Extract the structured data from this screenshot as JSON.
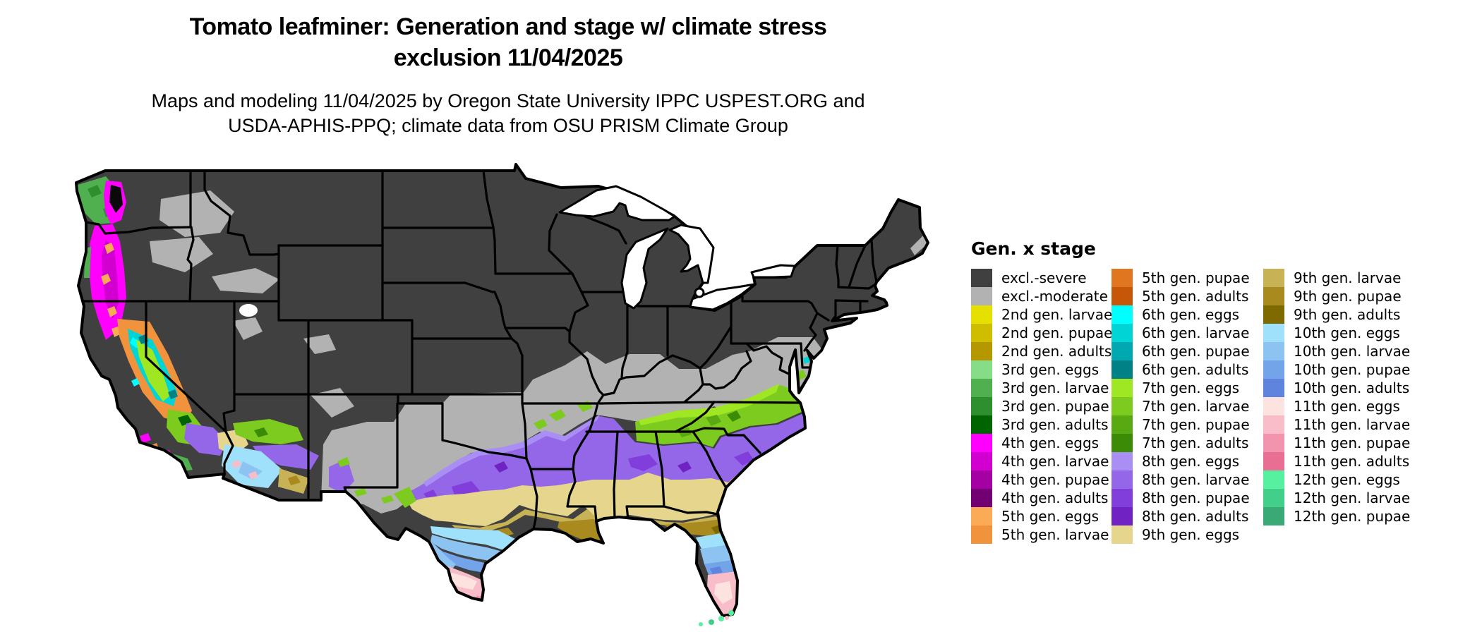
{
  "header": {
    "title1": "Tomato leafminer: Generation and stage w/ climate stress",
    "title2": "exclusion 11/04/2025",
    "subtitle1": "Maps and modeling 11/04/2025 by Oregon State University IPPC USPEST.ORG and",
    "subtitle2": "USDA-APHIS-PPQ; climate data from OSU PRISM Climate Group"
  },
  "legend": {
    "title": "Gen. x stage",
    "columns": [
      [
        {
          "label": "excl.-severe",
          "key": "excl_severe"
        },
        {
          "label": "excl.-moderate",
          "key": "excl_moderate"
        },
        {
          "label": "2nd gen. larvae",
          "key": "g2_larvae"
        },
        {
          "label": "2nd gen. pupae",
          "key": "g2_pupae"
        },
        {
          "label": "2nd gen. adults",
          "key": "g2_adults"
        },
        {
          "label": "3rd gen. eggs",
          "key": "g3_eggs"
        },
        {
          "label": "3rd gen. larvae",
          "key": "g3_larvae"
        },
        {
          "label": "3rd gen. pupae",
          "key": "g3_pupae"
        },
        {
          "label": "3rd gen. adults",
          "key": "g3_adults"
        },
        {
          "label": "4th gen. eggs",
          "key": "g4_eggs"
        },
        {
          "label": "4th gen. larvae",
          "key": "g4_larvae"
        },
        {
          "label": "4th gen. pupae",
          "key": "g4_pupae"
        },
        {
          "label": "4th gen. adults",
          "key": "g4_adults"
        },
        {
          "label": "5th gen. eggs",
          "key": "g5_eggs"
        },
        {
          "label": "5th gen. larvae",
          "key": "g5_larvae"
        }
      ],
      [
        {
          "label": "5th gen. pupae",
          "key": "g5_pupae"
        },
        {
          "label": "5th gen. adults",
          "key": "g5_adults"
        },
        {
          "label": "6th gen. eggs",
          "key": "g6_eggs"
        },
        {
          "label": "6th gen. larvae",
          "key": "g6_larvae"
        },
        {
          "label": "6th gen. pupae",
          "key": "g6_pupae"
        },
        {
          "label": "6th gen. adults",
          "key": "g6_adults"
        },
        {
          "label": "7th gen. eggs",
          "key": "g7_eggs"
        },
        {
          "label": "7th gen. larvae",
          "key": "g7_larvae"
        },
        {
          "label": "7th gen. pupae",
          "key": "g7_pupae"
        },
        {
          "label": "7th gen. adults",
          "key": "g7_adults"
        },
        {
          "label": "8th gen. eggs",
          "key": "g8_eggs"
        },
        {
          "label": "8th gen. larvae",
          "key": "g8_larvae"
        },
        {
          "label": "8th gen. pupae",
          "key": "g8_pupae"
        },
        {
          "label": "8th gen. adults",
          "key": "g8_adults"
        },
        {
          "label": "9th gen. eggs",
          "key": "g9_eggs"
        }
      ],
      [
        {
          "label": "9th gen. larvae",
          "key": "g9_larvae"
        },
        {
          "label": "9th gen. pupae",
          "key": "g9_pupae"
        },
        {
          "label": "9th gen. adults",
          "key": "g9_adults"
        },
        {
          "label": "10th gen. eggs",
          "key": "g10_eggs"
        },
        {
          "label": "10th gen. larvae",
          "key": "g10_larvae"
        },
        {
          "label": "10th gen. pupae",
          "key": "g10_pupae"
        },
        {
          "label": "10th gen. adults",
          "key": "g10_adults"
        },
        {
          "label": "11th gen. eggs",
          "key": "g11_eggs"
        },
        {
          "label": "11th gen. larvae",
          "key": "g11_larvae"
        },
        {
          "label": "11th gen. pupae",
          "key": "g11_pupae"
        },
        {
          "label": "11th gen. adults",
          "key": "g11_adults"
        },
        {
          "label": "12th gen. eggs",
          "key": "g12_eggs"
        },
        {
          "label": "12th gen. larvae",
          "key": "g12_larvae"
        },
        {
          "label": "12th gen. pupae",
          "key": "g12_pupae"
        }
      ]
    ]
  },
  "map": {
    "ocean_color": "#ffffff",
    "outline_color": "#000000",
    "palette": {
      "excl_severe": "#404040",
      "excl_moderate": "#b2b2b2",
      "g2_larvae": "#e6e000",
      "g2_pupae": "#cfbe00",
      "g2_adults": "#b59700",
      "g3_eggs": "#87dd87",
      "g3_larvae": "#50b050",
      "g3_pupae": "#2d8f2d",
      "g3_adults": "#006400",
      "g4_eggs": "#ff00ff",
      "g4_larvae": "#d100d1",
      "g4_pupae": "#a400a4",
      "g4_adults": "#730073",
      "g5_eggs": "#fbaa55",
      "g5_larvae": "#f1923d",
      "g5_pupae": "#e0761f",
      "g5_adults": "#c65608",
      "g6_eggs": "#00ffff",
      "g6_larvae": "#00d4d4",
      "g6_pupae": "#00a9b2",
      "g6_adults": "#008185",
      "g7_eggs": "#a0e723",
      "g7_larvae": "#7dcb1f",
      "g7_pupae": "#59a913",
      "g7_adults": "#3c8b06",
      "g8_eggs": "#a98ff3",
      "g8_larvae": "#9467e9",
      "g8_pupae": "#813edb",
      "g8_adults": "#7122c3",
      "g9_eggs": "#e6d58c",
      "g9_larvae": "#c7b255",
      "g9_pupae": "#a88a1f",
      "g9_adults": "#7e6a00",
      "g10_eggs": "#9fe1fb",
      "g10_larvae": "#8cc3f0",
      "g10_pupae": "#73a3e9",
      "g10_adults": "#5f84de",
      "g11_eggs": "#fde3e0",
      "g11_larvae": "#f8bdc9",
      "g11_pupae": "#f294ae",
      "g11_adults": "#e86e94",
      "g12_eggs": "#57efa0",
      "g12_larvae": "#41cf8a",
      "g12_pupae": "#3aa975",
      "water_black": "#0a0a0a"
    }
  }
}
